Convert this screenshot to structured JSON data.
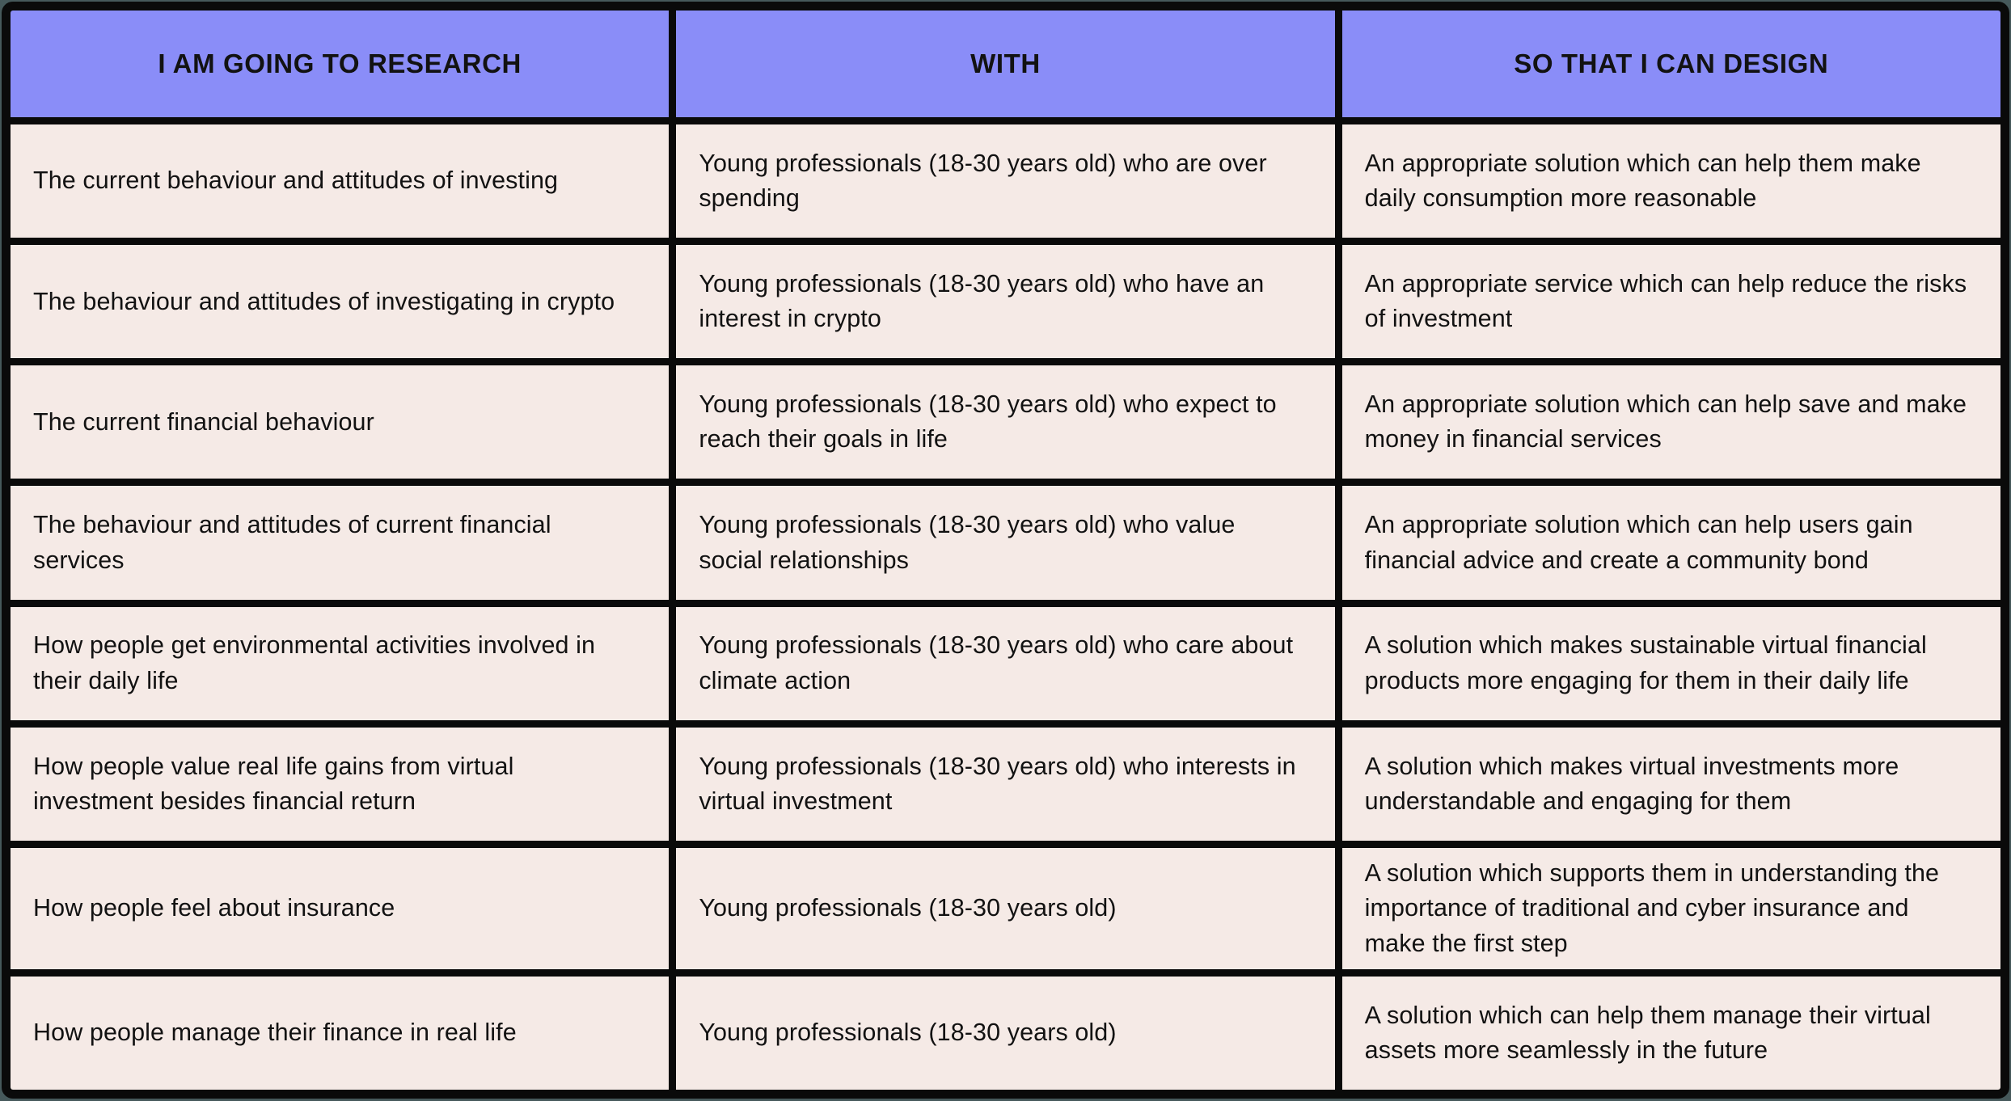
{
  "page": {
    "background_color": "#46595b",
    "grid_line_color": "#0a0a0a",
    "header_bg_color": "#8a8df8",
    "cell_bg_color": "#f5eae6",
    "text_color": "#121212"
  },
  "table": {
    "headers": [
      {
        "id": "research",
        "label": "I AM GOING TO RESEARCH"
      },
      {
        "id": "with",
        "label": "WITH"
      },
      {
        "id": "design",
        "label": "SO THAT I CAN DESIGN"
      }
    ],
    "rows": [
      {
        "research": "The current behaviour and attitudes of investing",
        "with": "Young professionals (18-30 years old) who are over spending",
        "design": "An appropriate solution which can help them make daily consumption more reasonable"
      },
      {
        "research": "The behaviour and attitudes of investigating in crypto",
        "with": "Young professionals (18-30 years old) who have an interest in crypto",
        "design": "An appropriate service which can help reduce the risks of investment"
      },
      {
        "research": "The current financial behaviour",
        "with": "Young professionals (18-30 years old) who expect to reach their goals in life",
        "design": "An appropriate solution which can help save and make money in financial services"
      },
      {
        "research": "The behaviour and attitudes of current financial services",
        "with": "Young professionals (18-30 years old) who value social relationships",
        "design": "An appropriate solution which can help users gain financial advice  and create a community bond"
      },
      {
        "research": "How people get environmental activities involved in their daily life",
        "with": "Young professionals (18-30 years old) who care about climate action",
        "design": "A solution which makes sustainable virtual financial products more engaging for them in their daily life"
      },
      {
        "research": "How people value real life gains from virtual investment besides financial return",
        "with": "Young professionals (18-30 years old) who interests in virtual investment",
        "design": "A solution which makes virtual investments more understandable and engaging for them"
      },
      {
        "research": "How people feel about insurance",
        "with": "Young professionals (18-30 years old)",
        "design": "A solution which supports them in understanding the importance of traditional and cyber insurance and make the first step"
      },
      {
        "research": "How people manage their finance in real life",
        "with": "Young professionals (18-30 years old)",
        "design": "A solution which can help them manage their virtual assets more seamlessly in the future"
      }
    ]
  }
}
